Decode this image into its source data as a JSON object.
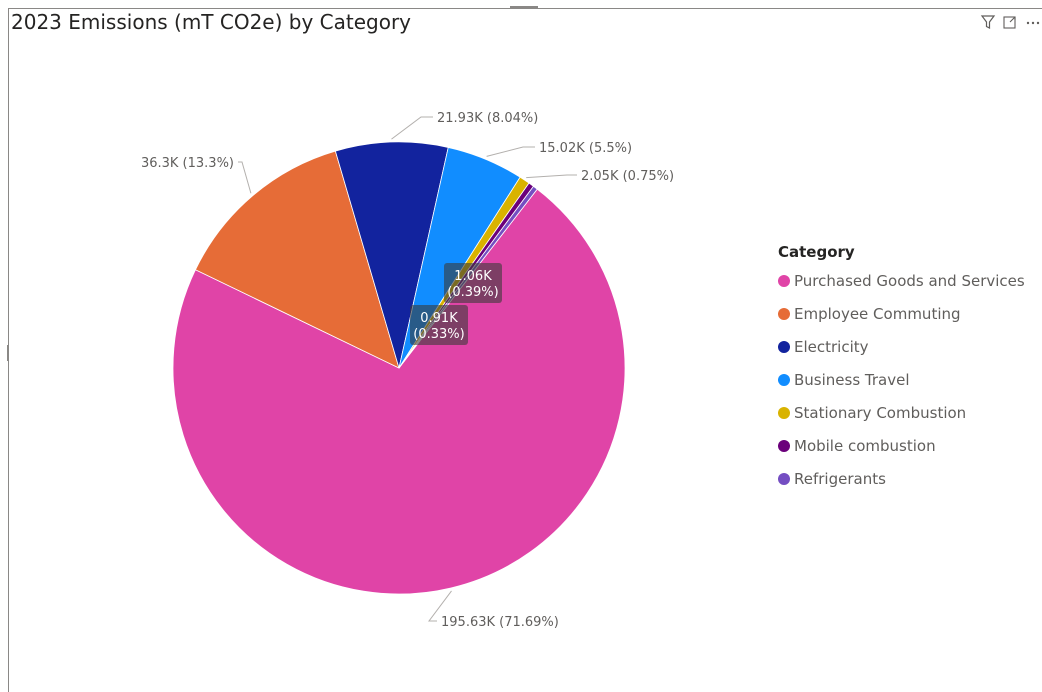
{
  "chart_data": {
    "type": "pie",
    "title": "2023 Emissions (mT CO2e) by Category",
    "legend_title": "Category",
    "legend_position": "right",
    "series": [
      {
        "name": "Purchased Goods and Services",
        "value": 195.63,
        "label": "195.63K (71.69%)",
        "color": "#E044A7"
      },
      {
        "name": "Employee Commuting",
        "value": 36.3,
        "label": "36.3K (13.3%)",
        "color": "#E66C37"
      },
      {
        "name": "Electricity",
        "value": 21.93,
        "label": "21.93K (8.04%)",
        "color": "#12239E"
      },
      {
        "name": "Business Travel",
        "value": 15.02,
        "label": "15.02K (5.5%)",
        "color": "#118DFF"
      },
      {
        "name": "Stationary Combustion",
        "value": 2.05,
        "label": "2.05K (0.75%)",
        "color": "#D9B300"
      },
      {
        "name": "Mobile combustion",
        "value": 1.06,
        "label": "1.06K (0.39%)",
        "color": "#6B007B"
      },
      {
        "name": "Refrigerants",
        "value": 0.91,
        "label": "0.91K (0.33%)",
        "color": "#744EC2"
      }
    ]
  },
  "toolbar": {
    "icons": [
      "filter-icon",
      "focus-mode-icon",
      "more-options-icon"
    ]
  }
}
